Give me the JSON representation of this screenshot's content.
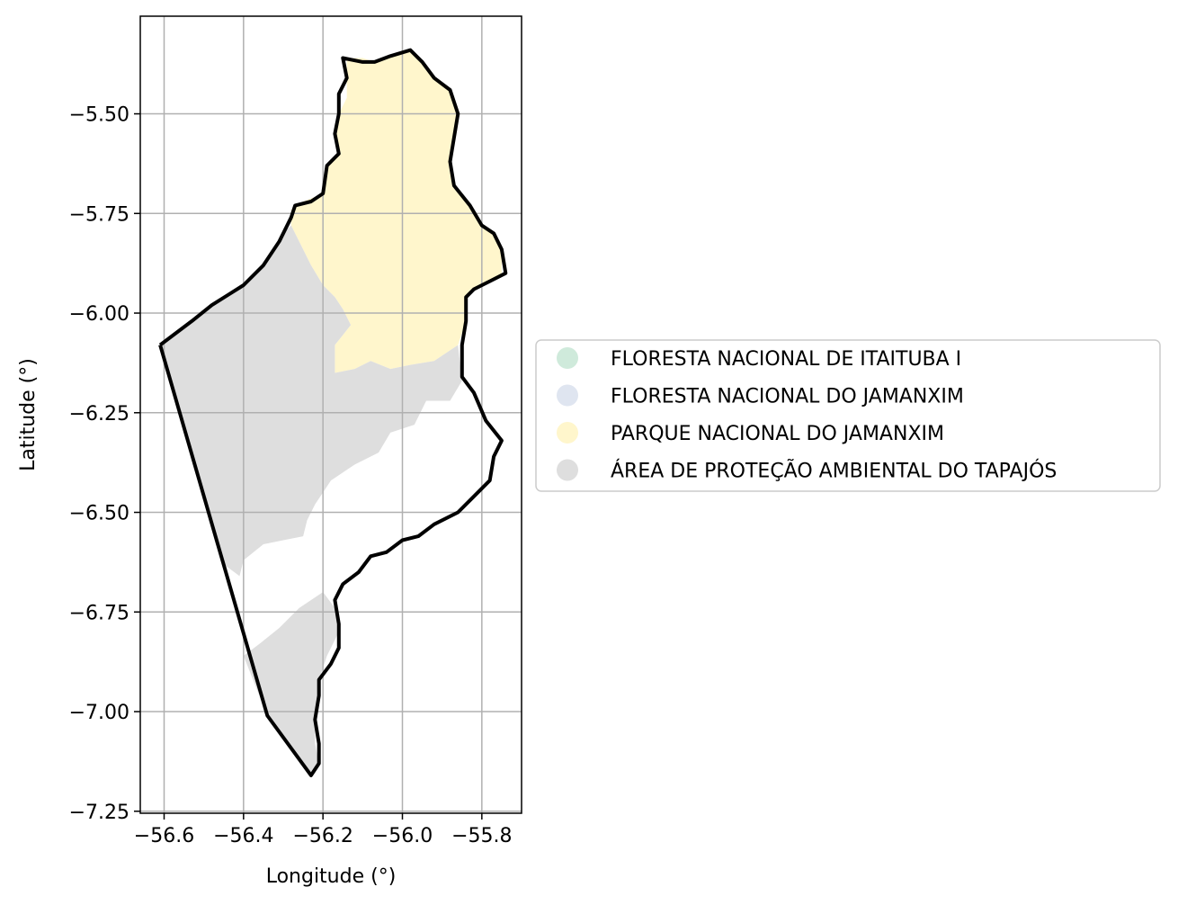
{
  "chart_data": {
    "type": "map",
    "xlabel": "Longitude (°)",
    "ylabel": "Latitude (°)",
    "xlim": [
      -56.66,
      -55.7
    ],
    "ylim": [
      -7.255,
      -5.255
    ],
    "x_ticks": [
      {
        "value": -56.6,
        "label": "−56.6"
      },
      {
        "value": -56.4,
        "label": "−56.4"
      },
      {
        "value": -56.2,
        "label": "−56.2"
      },
      {
        "value": -56.0,
        "label": "−56.0"
      },
      {
        "value": -55.8,
        "label": "−55.8"
      }
    ],
    "y_ticks": [
      {
        "value": -5.5,
        "label": "−5.50"
      },
      {
        "value": -5.75,
        "label": "−5.75"
      },
      {
        "value": -6.0,
        "label": "−6.00"
      },
      {
        "value": -6.25,
        "label": "−6.25"
      },
      {
        "value": -6.5,
        "label": "−6.50"
      },
      {
        "value": -6.75,
        "label": "−6.75"
      },
      {
        "value": -7.0,
        "label": "−7.00"
      },
      {
        "value": -7.25,
        "label": "−7.25"
      }
    ],
    "grid": true,
    "legend_position": "right",
    "categories": [
      {
        "name": "FLORESTA NACIONAL DE ITAITUBA I",
        "color": "#cfeadb"
      },
      {
        "name": "FLORESTA NACIONAL DO JAMANXIM",
        "color": "#dfe5f0"
      },
      {
        "name": "PARQUE NACIONAL DO JAMANXIM",
        "color": "#fff6cc"
      },
      {
        "name": "ÁREA DE PROTEÇÃO AMBIENTAL DO TAPAJÓS",
        "color": "#dedede"
      }
    ],
    "regions": {
      "parque": [
        [
          -56.14,
          -5.36
        ],
        [
          -56.1,
          -5.36
        ],
        [
          -56.07,
          -5.37
        ],
        [
          -56.03,
          -5.355
        ],
        [
          -55.98,
          -5.34
        ],
        [
          -55.95,
          -5.37
        ],
        [
          -55.92,
          -5.41
        ],
        [
          -55.88,
          -5.44
        ],
        [
          -55.86,
          -5.5
        ],
        [
          -55.87,
          -5.56
        ],
        [
          -55.88,
          -5.62
        ],
        [
          -55.87,
          -5.68
        ],
        [
          -55.83,
          -5.73
        ],
        [
          -55.8,
          -5.78
        ],
        [
          -55.77,
          -5.8
        ],
        [
          -55.75,
          -5.84
        ],
        [
          -55.75,
          -5.9
        ],
        [
          -55.78,
          -5.92
        ],
        [
          -55.82,
          -5.94
        ],
        [
          -55.84,
          -5.96
        ],
        [
          -55.84,
          -6.02
        ],
        [
          -55.86,
          -6.08
        ],
        [
          -55.92,
          -6.12
        ],
        [
          -55.98,
          -6.13
        ],
        [
          -56.03,
          -6.14
        ],
        [
          -56.08,
          -6.12
        ],
        [
          -56.12,
          -6.14
        ],
        [
          -56.17,
          -6.15
        ],
        [
          -56.17,
          -6.08
        ],
        [
          -56.13,
          -6.03
        ],
        [
          -56.15,
          -5.99
        ],
        [
          -56.17,
          -5.96
        ],
        [
          -56.2,
          -5.93
        ],
        [
          -56.23,
          -5.88
        ],
        [
          -56.25,
          -5.84
        ],
        [
          -56.28,
          -5.78
        ],
        [
          -56.28,
          -5.74
        ],
        [
          -56.25,
          -5.72
        ],
        [
          -56.2,
          -5.7
        ],
        [
          -56.19,
          -5.63
        ],
        [
          -56.16,
          -5.6
        ],
        [
          -56.17,
          -5.55
        ],
        [
          -56.16,
          -5.5
        ],
        [
          -56.14,
          -5.46
        ],
        [
          -56.14,
          -5.4
        ]
      ],
      "apa_north": [
        [
          -56.61,
          -6.08
        ],
        [
          -56.53,
          -6.02
        ],
        [
          -56.48,
          -5.98
        ],
        [
          -56.4,
          -5.93
        ],
        [
          -56.34,
          -5.87
        ],
        [
          -56.3,
          -5.8
        ],
        [
          -56.28,
          -5.78
        ],
        [
          -56.25,
          -5.84
        ],
        [
          -56.23,
          -5.88
        ],
        [
          -56.2,
          -5.93
        ],
        [
          -56.17,
          -5.96
        ],
        [
          -56.15,
          -5.99
        ],
        [
          -56.13,
          -6.03
        ],
        [
          -56.17,
          -6.08
        ],
        [
          -56.17,
          -6.15
        ],
        [
          -56.12,
          -6.14
        ],
        [
          -56.08,
          -6.12
        ],
        [
          -56.03,
          -6.14
        ],
        [
          -55.98,
          -6.13
        ],
        [
          -55.92,
          -6.12
        ],
        [
          -55.86,
          -6.08
        ],
        [
          -55.85,
          -6.17
        ],
        [
          -55.88,
          -6.22
        ],
        [
          -55.94,
          -6.22
        ],
        [
          -55.97,
          -6.28
        ],
        [
          -56.03,
          -6.3
        ],
        [
          -56.06,
          -6.35
        ],
        [
          -56.12,
          -6.38
        ],
        [
          -56.18,
          -6.42
        ],
        [
          -56.22,
          -6.48
        ],
        [
          -56.24,
          -6.52
        ],
        [
          -56.25,
          -6.56
        ],
        [
          -56.3,
          -6.57
        ],
        [
          -56.35,
          -6.58
        ],
        [
          -56.4,
          -6.62
        ],
        [
          -56.41,
          -6.66
        ],
        [
          -56.45,
          -6.63
        ],
        [
          -56.47,
          -6.58
        ]
      ],
      "apa_south": [
        [
          -56.2,
          -6.7
        ],
        [
          -56.17,
          -6.74
        ],
        [
          -56.16,
          -6.8
        ],
        [
          -56.19,
          -6.86
        ],
        [
          -56.21,
          -6.92
        ],
        [
          -56.21,
          -6.96
        ],
        [
          -56.22,
          -7.02
        ],
        [
          -56.22,
          -7.08
        ],
        [
          -56.21,
          -7.13
        ],
        [
          -56.23,
          -7.16
        ],
        [
          -56.34,
          -7.01
        ],
        [
          -56.4,
          -6.86
        ],
        [
          -56.36,
          -6.83
        ],
        [
          -56.31,
          -6.79
        ],
        [
          -56.26,
          -6.74
        ]
      ],
      "outline": [
        [
          -56.61,
          -6.08
        ],
        [
          -56.53,
          -6.02
        ],
        [
          -56.48,
          -5.98
        ],
        [
          -56.4,
          -5.93
        ],
        [
          -56.35,
          -5.88
        ],
        [
          -56.31,
          -5.82
        ],
        [
          -56.28,
          -5.76
        ],
        [
          -56.27,
          -5.73
        ],
        [
          -56.23,
          -5.72
        ],
        [
          -56.2,
          -5.7
        ],
        [
          -56.19,
          -5.63
        ],
        [
          -56.16,
          -5.6
        ],
        [
          -56.17,
          -5.55
        ],
        [
          -56.16,
          -5.5
        ],
        [
          -56.16,
          -5.45
        ],
        [
          -56.14,
          -5.41
        ],
        [
          -56.15,
          -5.36
        ],
        [
          -56.1,
          -5.37
        ],
        [
          -56.07,
          -5.37
        ],
        [
          -56.03,
          -5.355
        ],
        [
          -55.98,
          -5.34
        ],
        [
          -55.95,
          -5.37
        ],
        [
          -55.92,
          -5.41
        ],
        [
          -55.88,
          -5.44
        ],
        [
          -55.86,
          -5.5
        ],
        [
          -55.87,
          -5.56
        ],
        [
          -55.88,
          -5.62
        ],
        [
          -55.87,
          -5.68
        ],
        [
          -55.83,
          -5.73
        ],
        [
          -55.8,
          -5.78
        ],
        [
          -55.77,
          -5.8
        ],
        [
          -55.75,
          -5.84
        ],
        [
          -55.74,
          -5.9
        ],
        [
          -55.78,
          -5.92
        ],
        [
          -55.82,
          -5.94
        ],
        [
          -55.84,
          -5.96
        ],
        [
          -55.84,
          -6.02
        ],
        [
          -55.85,
          -6.08
        ],
        [
          -55.85,
          -6.16
        ],
        [
          -55.82,
          -6.2
        ],
        [
          -55.79,
          -6.27
        ],
        [
          -55.75,
          -6.32
        ],
        [
          -55.77,
          -6.36
        ],
        [
          -55.78,
          -6.42
        ],
        [
          -55.82,
          -6.46
        ],
        [
          -55.86,
          -6.5
        ],
        [
          -55.92,
          -6.53
        ],
        [
          -55.96,
          -6.56
        ],
        [
          -56.0,
          -6.57
        ],
        [
          -56.04,
          -6.6
        ],
        [
          -56.08,
          -6.61
        ],
        [
          -56.11,
          -6.65
        ],
        [
          -56.15,
          -6.68
        ],
        [
          -56.17,
          -6.72
        ],
        [
          -56.16,
          -6.78
        ],
        [
          -56.16,
          -6.84
        ],
        [
          -56.18,
          -6.88
        ],
        [
          -56.21,
          -6.92
        ],
        [
          -56.21,
          -6.96
        ],
        [
          -56.22,
          -7.02
        ],
        [
          -56.21,
          -7.08
        ],
        [
          -56.21,
          -7.13
        ],
        [
          -56.23,
          -7.16
        ],
        [
          -56.34,
          -7.01
        ],
        [
          -56.61,
          -6.08
        ]
      ]
    }
  }
}
